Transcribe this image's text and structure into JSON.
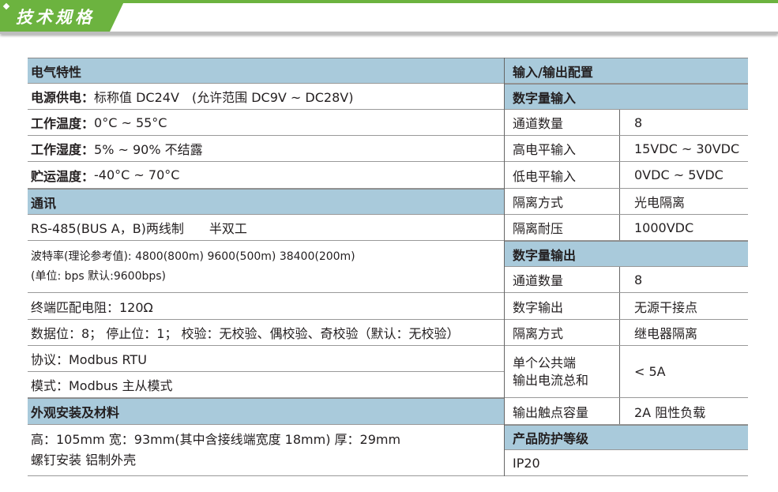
{
  "banner": {
    "title": "技术规格"
  },
  "left": {
    "electrical": {
      "header": "电气特性",
      "power": {
        "label": "电源供电：",
        "value": "标称值 DC24V　(允许范围 DC9V ~ DC28V)"
      },
      "temp": {
        "label": "工作温度：",
        "value": "0°C ~ 55°C"
      },
      "humidity": {
        "label": "工作湿度：",
        "value": " 5% ~ 90%  不结露"
      },
      "storage": {
        "label": "贮运温度：",
        "value": "-40°C ~ 70°C"
      }
    },
    "comm": {
      "header": "通讯",
      "rs485": "RS-485(BUS A，B)两线制　　半双工",
      "baud_line1": "波特率(理论参考值): 4800(800m)  9600(500m)  38400(200m)",
      "baud_line2": "(单位: bps  默认:9600bps)",
      "termination": "终端匹配电阻：120Ω",
      "databits": "数据位：8；  停止位：1；  校验：无校验、偶校验、奇校验（默认：无校验）",
      "protocol": "协议：Modbus RTU",
      "mode": "模式：Modbus 主从模式"
    },
    "appearance": {
      "header": "外观安装及材料",
      "line1": "高：105mm  宽：93mm(其中含接线端宽度 18mm)   厚：29mm",
      "line2": "螺钉安装  铝制外壳"
    }
  },
  "right": {
    "header": "输入/输出配置",
    "digital_in": {
      "header": "数字量输入",
      "rows": [
        {
          "k": "通道数量",
          "v": "8"
        },
        {
          "k": "高电平输入",
          "v": "15VDC ~ 30VDC"
        },
        {
          "k": "低电平输入",
          "v": "0VDC ~ 5VDC"
        },
        {
          "k": "隔离方式",
          "v": "光电隔离"
        },
        {
          "k": "隔离耐压",
          "v": "1000VDC"
        }
      ]
    },
    "digital_out": {
      "header": "数字量输出",
      "rows": [
        {
          "k": "通道数量",
          "v": "8"
        },
        {
          "k": "数字输出",
          "v": "无源干接点"
        },
        {
          "k": "隔离方式",
          "v": "继电器隔离"
        },
        {
          "k1": "单个公共端",
          "k2": "输出电流总和",
          "v": " < 5A"
        },
        {
          "k": "输出触点容量",
          "v": "2A  阻性负载"
        }
      ]
    },
    "protection": {
      "header": "产品防护等级",
      "value": "IP20"
    }
  }
}
